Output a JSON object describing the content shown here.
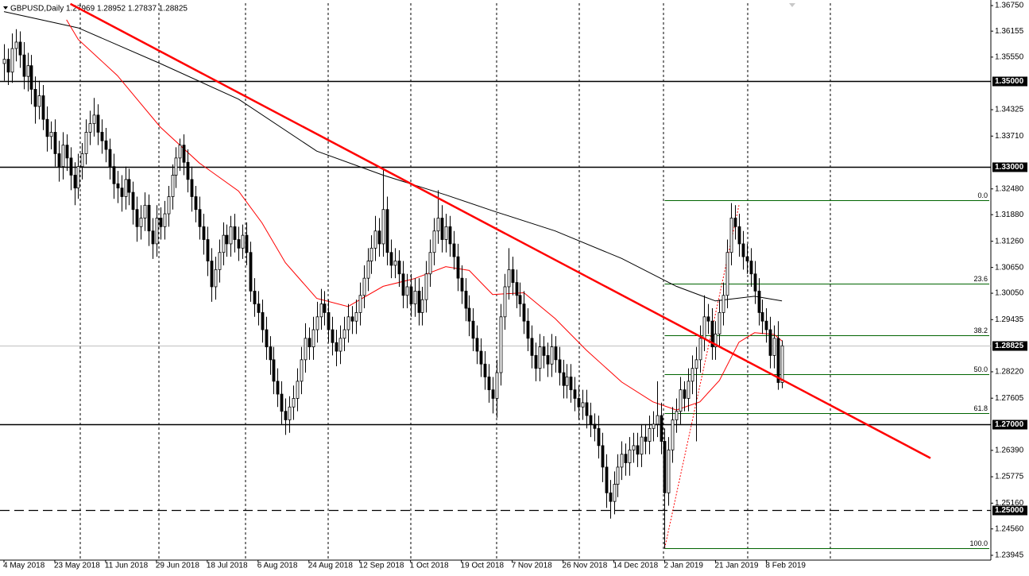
{
  "chart_data": {
    "type": "candlestick",
    "title": "GBPUSD,Daily  1.27969 1.28952 1.27837 1.28825",
    "categories": [
      "4 May 2018",
      null,
      null,
      null,
      null,
      null,
      null,
      null,
      null,
      null,
      null,
      null,
      null,
      "23 May 2018",
      null,
      null,
      null,
      null,
      null,
      null,
      null,
      null,
      null,
      null,
      null,
      null,
      "11 Jun 2018",
      null,
      null,
      null,
      null,
      null,
      null,
      null,
      null,
      null,
      null,
      null,
      null,
      "29 Jun 2018",
      null,
      null,
      null,
      null,
      null,
      null,
      null,
      null,
      null,
      null,
      null,
      null,
      "18 Jul 2018",
      null,
      null,
      null,
      null,
      null,
      null,
      null,
      null,
      null,
      null,
      null,
      null,
      "6 Aug 2018",
      null,
      null,
      null,
      null,
      null,
      null,
      null,
      null,
      null,
      null,
      null,
      null,
      "24 Aug 2018",
      null,
      null,
      null,
      null,
      null,
      null,
      null,
      null,
      null,
      null,
      null,
      null,
      "12 Sep 2018",
      null,
      null,
      null,
      null,
      null,
      null,
      null,
      null,
      null,
      null,
      null,
      null,
      "1 Oct 2018",
      null,
      null,
      null,
      null,
      null,
      null,
      null,
      null,
      null,
      null,
      null,
      null,
      "19 Oct 2018",
      null,
      null,
      null,
      null,
      null,
      null,
      null,
      null,
      null,
      null,
      null,
      null,
      "7 Nov 2018",
      null,
      null,
      null,
      null,
      null,
      null,
      null,
      null,
      null,
      null,
      null,
      null,
      "26 Nov 2018",
      null,
      null,
      null,
      null,
      null,
      null,
      null,
      null,
      null,
      null,
      null,
      null,
      "14 Dec 2018",
      null,
      null,
      null,
      null,
      null,
      null,
      null,
      null,
      null,
      null,
      null,
      null,
      "2 Jan 2019",
      null,
      null,
      null,
      null,
      null,
      null,
      null,
      null,
      null,
      null,
      null,
      null,
      "21 Jan 2019",
      null,
      null,
      null,
      null,
      null,
      null,
      null,
      null,
      null,
      null,
      null,
      null,
      "8 Feb 2019",
      null,
      null,
      null,
      null
    ],
    "open": [
      1.354,
      1.355,
      1.352,
      1.3575,
      1.359,
      1.356,
      1.351,
      1.3535,
      1.348,
      1.344,
      1.3465,
      1.341,
      1.337,
      1.338,
      1.333,
      1.33,
      1.335,
      1.332,
      1.328,
      1.325,
      1.33,
      1.333,
      1.338,
      1.34,
      1.342,
      1.338,
      1.336,
      1.334,
      1.33,
      1.326,
      1.325,
      1.323,
      1.327,
      1.324,
      1.32,
      1.316,
      1.318,
      1.321,
      1.315,
      1.312,
      1.318,
      1.316,
      1.319,
      1.323,
      1.328,
      1.332,
      1.335,
      1.331,
      1.327,
      1.323,
      1.32,
      1.316,
      1.313,
      1.308,
      1.302,
      1.306,
      1.31,
      1.314,
      1.312,
      1.316,
      1.313,
      1.311,
      1.314,
      1.31,
      1.301,
      1.298,
      1.296,
      1.292,
      1.288,
      1.285,
      1.28,
      1.277,
      1.273,
      1.271,
      1.274,
      1.276,
      1.28,
      1.285,
      1.29,
      1.288,
      1.292,
      1.295,
      1.298,
      1.296,
      1.292,
      1.289,
      1.287,
      1.29,
      1.292,
      1.295,
      1.294,
      1.296,
      1.3,
      1.304,
      1.308,
      1.311,
      1.315,
      1.312,
      1.32,
      1.31,
      1.307,
      1.308,
      1.305,
      1.3,
      1.302,
      1.298,
      1.301,
      1.296,
      1.299,
      1.305,
      1.31,
      1.315,
      1.318,
      1.313,
      1.316,
      1.312,
      1.309,
      1.304,
      1.301,
      1.297,
      1.294,
      1.29,
      1.287,
      1.284,
      1.281,
      1.278,
      1.276,
      1.282,
      1.295,
      1.302,
      1.306,
      1.303,
      1.3,
      1.298,
      1.294,
      1.29,
      1.286,
      1.283,
      1.288,
      1.286,
      1.284,
      1.288,
      1.285,
      1.282,
      1.279,
      1.281,
      1.278,
      1.276,
      1.274,
      1.275,
      1.272,
      1.27,
      1.269,
      1.265,
      1.26,
      1.254,
      1.252,
      1.256,
      1.26,
      1.263,
      1.261,
      1.264,
      1.265,
      1.263,
      1.267,
      1.266,
      1.269,
      1.27,
      1.272,
      1.266,
      1.254,
      1.264,
      1.271,
      1.273,
      1.278,
      1.276,
      1.28,
      1.283,
      1.285,
      1.29,
      1.295,
      1.294,
      1.288,
      1.291,
      1.296,
      1.3,
      1.31,
      1.318,
      1.316,
      1.312,
      1.309,
      1.308,
      1.305,
      1.301,
      1.296,
      1.294,
      1.292,
      1.286,
      1.29,
      1.2797
    ],
    "high": [
      1.3585,
      1.3575,
      1.361,
      1.362,
      1.3615,
      1.359,
      1.3565,
      1.356,
      1.351,
      1.35,
      1.349,
      1.344,
      1.3405,
      1.341,
      1.336,
      1.338,
      1.3375,
      1.3345,
      1.331,
      1.333,
      1.3355,
      1.341,
      1.343,
      1.346,
      1.3445,
      1.341,
      1.339,
      1.3365,
      1.333,
      1.329,
      1.328,
      1.33,
      1.3295,
      1.3265,
      1.323,
      1.321,
      1.324,
      1.3235,
      1.318,
      1.321,
      1.3205,
      1.322,
      1.3255,
      1.3305,
      1.3345,
      1.3365,
      1.3375,
      1.334,
      1.33,
      1.3255,
      1.323,
      1.319,
      1.316,
      1.311,
      1.309,
      1.313,
      1.317,
      1.3165,
      1.3185,
      1.319,
      1.316,
      1.3165,
      1.317,
      1.3125,
      1.304,
      1.301,
      1.299,
      1.295,
      1.2905,
      1.288,
      1.283,
      1.28,
      1.276,
      1.2765,
      1.279,
      1.283,
      1.288,
      1.2935,
      1.2925,
      1.295,
      1.2985,
      1.3015,
      1.301,
      1.299,
      1.295,
      1.292,
      1.293,
      1.295,
      1.298,
      1.2975,
      1.299,
      1.303,
      1.307,
      1.311,
      1.314,
      1.3185,
      1.318,
      1.3295,
      1.323,
      1.313,
      1.311,
      1.3105,
      1.308,
      1.305,
      1.305,
      1.304,
      1.304,
      1.302,
      1.308,
      1.313,
      1.318,
      1.3245,
      1.321,
      1.319,
      1.3185,
      1.315,
      1.312,
      1.307,
      1.304,
      1.3,
      1.297,
      1.293,
      1.29,
      1.287,
      1.284,
      1.281,
      1.285,
      1.298,
      1.305,
      1.311,
      1.309,
      1.306,
      1.303,
      1.301,
      1.297,
      1.293,
      1.289,
      1.291,
      1.2905,
      1.289,
      1.291,
      1.2905,
      1.288,
      1.285,
      1.284,
      1.284,
      1.281,
      1.279,
      1.278,
      1.278,
      1.275,
      1.2725,
      1.272,
      1.268,
      1.263,
      1.257,
      1.259,
      1.263,
      1.266,
      1.2655,
      1.267,
      1.268,
      1.268,
      1.27,
      1.27,
      1.272,
      1.273,
      1.28,
      1.275,
      1.269,
      1.267,
      1.274,
      1.276,
      1.281,
      1.28,
      1.283,
      1.286,
      1.288,
      1.293,
      1.3,
      1.298,
      1.297,
      1.294,
      1.299,
      1.303,
      1.313,
      1.3215,
      1.321,
      1.319,
      1.315,
      1.312,
      1.311,
      1.308,
      1.304,
      1.299,
      1.297,
      1.295,
      1.293,
      1.294,
      1.28952
    ],
    "low": [
      1.35,
      1.349,
      1.3495,
      1.3545,
      1.353,
      1.348,
      1.3475,
      1.3445,
      1.34,
      1.341,
      1.3385,
      1.3335,
      1.334,
      1.33,
      1.3265,
      1.327,
      1.329,
      1.3245,
      1.321,
      1.3225,
      1.327,
      1.3305,
      1.335,
      1.337,
      1.335,
      1.333,
      1.331,
      1.327,
      1.3225,
      1.3215,
      1.3195,
      1.32,
      1.321,
      1.3165,
      1.3125,
      1.313,
      1.315,
      1.3115,
      1.3085,
      1.309,
      1.313,
      1.313,
      1.316,
      1.32,
      1.325,
      1.329,
      1.328,
      1.324,
      1.3195,
      1.317,
      1.313,
      1.3095,
      1.3045,
      1.2985,
      1.299,
      1.303,
      1.307,
      1.309,
      1.309,
      1.31,
      1.308,
      1.3085,
      1.307,
      1.2985,
      1.295,
      1.293,
      1.289,
      1.285,
      1.2815,
      1.277,
      1.274,
      1.27,
      1.2675,
      1.268,
      1.271,
      1.273,
      1.277,
      1.282,
      1.285,
      1.285,
      1.289,
      1.292,
      1.293,
      1.289,
      1.286,
      1.2835,
      1.284,
      1.287,
      1.289,
      1.291,
      1.291,
      1.293,
      1.297,
      1.301,
      1.305,
      1.308,
      1.309,
      1.309,
      1.307,
      1.304,
      1.304,
      1.302,
      1.297,
      1.297,
      1.295,
      1.295,
      1.293,
      1.293,
      1.296,
      1.302,
      1.307,
      1.312,
      1.31,
      1.31,
      1.309,
      1.306,
      1.301,
      1.298,
      1.294,
      1.2905,
      1.287,
      1.284,
      1.281,
      1.278,
      1.275,
      1.2725,
      1.2715,
      1.279,
      1.292,
      1.299,
      1.3,
      1.297,
      1.295,
      1.291,
      1.287,
      1.283,
      1.28,
      1.28,
      1.283,
      1.281,
      1.281,
      1.282,
      1.279,
      1.276,
      1.276,
      1.275,
      1.273,
      1.271,
      1.271,
      1.269,
      1.267,
      1.266,
      1.262,
      1.2565,
      1.2505,
      1.248,
      1.249,
      1.253,
      1.257,
      1.258,
      1.258,
      1.261,
      1.26,
      1.26,
      1.263,
      1.263,
      1.266,
      1.267,
      1.263,
      1.241,
      1.251,
      1.261,
      1.268,
      1.27,
      1.273,
      1.273,
      1.277,
      1.266,
      1.282,
      1.287,
      1.291,
      1.285,
      1.285,
      1.288,
      1.293,
      1.297,
      1.307,
      1.313,
      1.309,
      1.306,
      1.305,
      1.302,
      1.298,
      1.293,
      1.291,
      1.289,
      1.283,
      1.283,
      1.278,
      1.27837
    ],
    "close": [
      1.355,
      1.352,
      1.3575,
      1.359,
      1.356,
      1.351,
      1.3535,
      1.348,
      1.344,
      1.3465,
      1.341,
      1.337,
      1.338,
      1.333,
      1.33,
      1.335,
      1.332,
      1.328,
      1.325,
      1.33,
      1.333,
      1.338,
      1.34,
      1.342,
      1.338,
      1.336,
      1.334,
      1.33,
      1.326,
      1.325,
      1.323,
      1.327,
      1.324,
      1.32,
      1.316,
      1.318,
      1.321,
      1.315,
      1.312,
      1.318,
      1.316,
      1.319,
      1.323,
      1.328,
      1.332,
      1.335,
      1.331,
      1.327,
      1.323,
      1.32,
      1.316,
      1.313,
      1.308,
      1.302,
      1.306,
      1.31,
      1.314,
      1.312,
      1.316,
      1.313,
      1.311,
      1.314,
      1.31,
      1.301,
      1.298,
      1.296,
      1.292,
      1.288,
      1.285,
      1.28,
      1.277,
      1.273,
      1.271,
      1.274,
      1.276,
      1.28,
      1.285,
      1.29,
      1.288,
      1.292,
      1.295,
      1.298,
      1.296,
      1.292,
      1.289,
      1.287,
      1.29,
      1.292,
      1.295,
      1.294,
      1.296,
      1.3,
      1.304,
      1.308,
      1.311,
      1.315,
      1.312,
      1.32,
      1.31,
      1.307,
      1.308,
      1.305,
      1.3,
      1.302,
      1.298,
      1.301,
      1.296,
      1.299,
      1.305,
      1.31,
      1.315,
      1.318,
      1.313,
      1.316,
      1.312,
      1.309,
      1.304,
      1.301,
      1.297,
      1.294,
      1.29,
      1.287,
      1.284,
      1.281,
      1.278,
      1.276,
      1.282,
      1.295,
      1.302,
      1.306,
      1.303,
      1.3,
      1.298,
      1.294,
      1.29,
      1.286,
      1.283,
      1.288,
      1.286,
      1.284,
      1.288,
      1.285,
      1.282,
      1.279,
      1.281,
      1.278,
      1.276,
      1.274,
      1.275,
      1.272,
      1.27,
      1.269,
      1.265,
      1.26,
      1.254,
      1.252,
      1.256,
      1.26,
      1.263,
      1.261,
      1.264,
      1.265,
      1.263,
      1.267,
      1.266,
      1.269,
      1.27,
      1.272,
      1.266,
      1.254,
      1.264,
      1.271,
      1.273,
      1.278,
      1.276,
      1.28,
      1.283,
      1.285,
      1.29,
      1.295,
      1.294,
      1.288,
      1.291,
      1.296,
      1.3,
      1.31,
      1.318,
      1.316,
      1.312,
      1.309,
      1.308,
      1.305,
      1.301,
      1.296,
      1.294,
      1.292,
      1.286,
      1.29,
      1.2797,
      1.28825
    ],
    "up_color": "#ffffff",
    "down_color": "#000000",
    "ylim": [
      1.23852,
      1.36806
    ],
    "yticks": [
      {
        "value": 1.3675,
        "label": "1.36750"
      },
      {
        "value": 1.36155,
        "label": "1.36155"
      },
      {
        "value": 1.3555,
        "label": "1.35550"
      },
      {
        "value": 1.34325,
        "label": "1.34325"
      },
      {
        "value": 1.3371,
        "label": "1.33710"
      },
      {
        "value": 1.3248,
        "label": "1.32480"
      },
      {
        "value": 1.3188,
        "label": "1.31880"
      },
      {
        "value": 1.3126,
        "label": "1.31260"
      },
      {
        "value": 1.3065,
        "label": "1.30650"
      },
      {
        "value": 1.3005,
        "label": "1.30050"
      },
      {
        "value": 1.29435,
        "label": "1.29435"
      },
      {
        "value": 1.2822,
        "label": "1.28220"
      },
      {
        "value": 1.27605,
        "label": "1.27605"
      },
      {
        "value": 1.2639,
        "label": "1.26390"
      },
      {
        "value": 1.25775,
        "label": "1.25775"
      },
      {
        "value": 1.2516,
        "label": "1.25160"
      },
      {
        "value": 1.2456,
        "label": "1.24560"
      },
      {
        "value": 1.23945,
        "label": "1.23945"
      }
    ],
    "levels": [
      {
        "value": 1.35,
        "label": "1.35000",
        "style": "solid"
      },
      {
        "value": 1.33,
        "label": "1.33000",
        "style": "solid"
      },
      {
        "value": 1.28825,
        "label": "1.28825",
        "style": "price"
      },
      {
        "value": 1.27,
        "label": "1.27000",
        "style": "solid"
      },
      {
        "value": 1.25,
        "label": "1.25000",
        "style": "dashed"
      }
    ],
    "moving_averages": [
      {
        "color": "#000000",
        "x": [
          0,
          19,
          40,
          60,
          80,
          97,
          113,
          125,
          141,
          158,
          172,
          182,
          192,
          199
        ],
        "values": [
          1.3661,
          1.3623,
          1.354,
          1.3457,
          1.3336,
          1.328,
          1.3234,
          1.3197,
          1.315,
          1.3086,
          1.3021,
          1.2987,
          1.2998,
          1.2987
        ]
      },
      {
        "color": "#ff0000",
        "x": [
          16,
          19,
          29,
          40,
          50,
          60,
          66,
          72,
          80,
          88,
          97,
          105,
          113,
          119,
          125,
          133,
          141,
          149,
          158,
          166,
          172,
          178,
          183,
          188,
          192,
          197,
          199
        ],
        "values": [
          1.3642,
          1.3596,
          1.3512,
          1.3392,
          1.3308,
          1.3243,
          1.3169,
          1.3076,
          1.2993,
          1.2974,
          1.3021,
          1.3039,
          1.3067,
          1.3058,
          1.3002,
          1.3006,
          1.2946,
          1.2872,
          1.2798,
          1.2752,
          1.2733,
          1.2752,
          1.2802,
          1.2891,
          1.2913,
          1.2909,
          1.2894
        ]
      }
    ],
    "trendline": {
      "color": "#ff0000",
      "x": [
        17,
        237
      ],
      "values": [
        1.3679,
        1.2621
      ]
    },
    "fib_anchor": {
      "color": "#ff0000",
      "x": [
        169,
        188
      ],
      "values": [
        1.2411,
        1.321
      ]
    },
    "fib": {
      "color": "#006400",
      "start": 169,
      "levels": [
        {
          "label": "0.0",
          "value": 1.3221
        },
        {
          "label": "23.6",
          "value": 1.3027
        },
        {
          "label": "38.2",
          "value": 1.2907
        },
        {
          "label": "50.0",
          "value": 1.2816
        },
        {
          "label": "61.8",
          "value": 1.2725
        },
        {
          "label": "100.0",
          "value": 1.2411
        }
      ]
    }
  }
}
